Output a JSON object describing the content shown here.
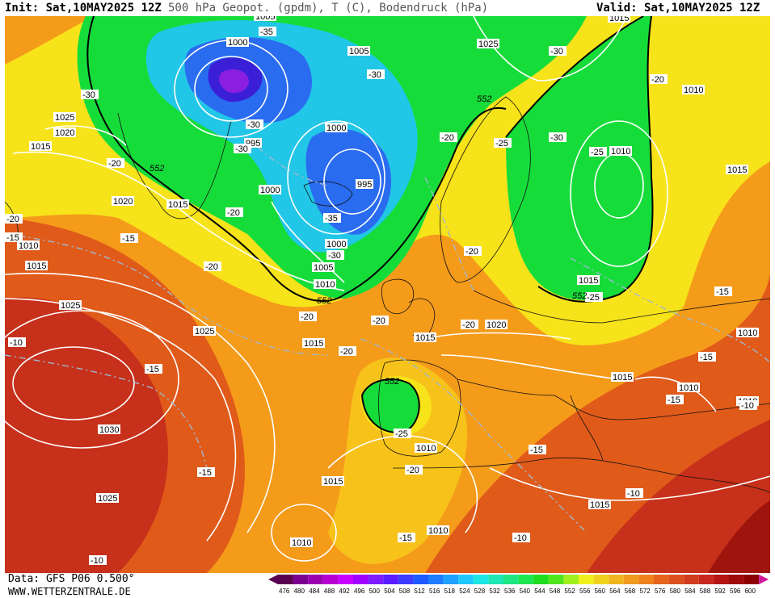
{
  "header": {
    "init": "Init: Sat,10MAY2025 12Z",
    "title": "500 hPa Geopot. (gpdm), T (C), Bodendruck (hPa)",
    "valid": "Valid: Sat,10MAY2025 12Z"
  },
  "footer": {
    "source": "Data: GFS P06 0.500°",
    "site": "WWW.WETTERZENTRALE.DE"
  },
  "colors": {
    "deep_blue": "#3a1fd6",
    "blue": "#2a6cf0",
    "cyan": "#22c6e6",
    "green": "#16dc3a",
    "yellow": "#f7e31a",
    "orange": "#f59b1a",
    "dark_orange": "#e05a1a",
    "red": "#c7301a",
    "contour": "#ffffff",
    "geopot_line": "#000000",
    "temp_line": "#a0b8d0"
  },
  "scale": {
    "values": [
      "476",
      "480",
      "484",
      "488",
      "492",
      "496",
      "500",
      "504",
      "508",
      "512",
      "516",
      "518",
      "524",
      "528",
      "532",
      "536",
      "540",
      "544",
      "548",
      "552",
      "556",
      "560",
      "564",
      "568",
      "572",
      "576",
      "580",
      "584",
      "588",
      "592",
      "596",
      "600"
    ],
    "colors": [
      "#5a0050",
      "#7a0090",
      "#9a00b0",
      "#b400d0",
      "#c800ff",
      "#a000ff",
      "#7c1cff",
      "#5a1cff",
      "#3c3cff",
      "#1e5aff",
      "#1e7cff",
      "#1ea0ff",
      "#1ec8ff",
      "#1ee6e6",
      "#1ee6b4",
      "#1ee682",
      "#1ee650",
      "#1edc1e",
      "#50e61e",
      "#a0f01e",
      "#f0f01e",
      "#f0d21e",
      "#f0b41e",
      "#f09b1e",
      "#f0821e",
      "#e6641e",
      "#dc501e",
      "#d23c1e",
      "#c8281e",
      "#b41414",
      "#a00a0a",
      "#8c0000"
    ]
  },
  "isobars": [
    {
      "id": "p1",
      "text": "1005"
    },
    {
      "id": "p2",
      "text": "1000"
    },
    {
      "id": "p3",
      "text": "1005"
    },
    {
      "id": "p4",
      "text": "1025"
    },
    {
      "id": "p5",
      "text": "1015"
    },
    {
      "id": "p6",
      "text": "1010"
    },
    {
      "id": "p7",
      "text": "1025"
    },
    {
      "id": "p8",
      "text": "1020"
    },
    {
      "id": "p9",
      "text": "1015"
    },
    {
      "id": "p10",
      "text": "995"
    },
    {
      "id": "p11",
      "text": "1000"
    },
    {
      "id": "p12",
      "text": "995"
    },
    {
      "id": "p13",
      "text": "1000"
    },
    {
      "id": "p14",
      "text": "1010"
    },
    {
      "id": "p15",
      "text": "1015"
    },
    {
      "id": "p16",
      "text": "1020"
    },
    {
      "id": "p17",
      "text": "1015"
    },
    {
      "id": "p18",
      "text": "1010"
    },
    {
      "id": "p19",
      "text": "1015"
    },
    {
      "id": "p20",
      "text": "1000"
    },
    {
      "id": "p21",
      "text": "1005"
    },
    {
      "id": "p22",
      "text": "1010"
    },
    {
      "id": "p23",
      "text": "1025"
    },
    {
      "id": "p24",
      "text": "1025"
    },
    {
      "id": "p25",
      "text": "1015"
    },
    {
      "id": "p26",
      "text": "1015"
    },
    {
      "id": "p27",
      "text": "1020"
    },
    {
      "id": "p28",
      "text": "1015"
    },
    {
      "id": "p29",
      "text": "1015"
    },
    {
      "id": "p30",
      "text": "1010"
    },
    {
      "id": "p31",
      "text": "1010"
    },
    {
      "id": "p32",
      "text": "1030"
    },
    {
      "id": "p33",
      "text": "1025"
    },
    {
      "id": "p34",
      "text": "1015"
    },
    {
      "id": "p35",
      "text": "1010"
    },
    {
      "id": "p36",
      "text": "1010"
    },
    {
      "id": "p37",
      "text": "1015"
    },
    {
      "id": "p38",
      "text": "1010"
    },
    {
      "id": "p39",
      "text": "1010"
    }
  ],
  "temps": [
    {
      "id": "t1",
      "text": "-35"
    },
    {
      "id": "t2",
      "text": "-30"
    },
    {
      "id": "t3",
      "text": "-30"
    },
    {
      "id": "t4",
      "text": "-30"
    },
    {
      "id": "t5",
      "text": "-30"
    },
    {
      "id": "t6",
      "text": "-20"
    },
    {
      "id": "t7",
      "text": "-25"
    },
    {
      "id": "t8",
      "text": "-30"
    },
    {
      "id": "t9",
      "text": "-25"
    },
    {
      "id": "t10",
      "text": "-20"
    },
    {
      "id": "t11",
      "text": "-30"
    },
    {
      "id": "t12",
      "text": "-20"
    },
    {
      "id": "t13",
      "text": "-20"
    },
    {
      "id": "t14",
      "text": "-35"
    },
    {
      "id": "t15",
      "text": "-15"
    },
    {
      "id": "t16",
      "text": "-15"
    },
    {
      "id": "t17",
      "text": "-20"
    },
    {
      "id": "t18",
      "text": "-30"
    },
    {
      "id": "t19",
      "text": "-20"
    },
    {
      "id": "t20",
      "text": "-20"
    },
    {
      "id": "t21",
      "text": "-20"
    },
    {
      "id": "t22",
      "text": "-20"
    },
    {
      "id": "t23",
      "text": "-25"
    },
    {
      "id": "t24",
      "text": "-15"
    },
    {
      "id": "t25",
      "text": "-10"
    },
    {
      "id": "t26",
      "text": "-15"
    },
    {
      "id": "t27",
      "text": "-20"
    },
    {
      "id": "t28",
      "text": "-15"
    },
    {
      "id": "t29",
      "text": "-20"
    },
    {
      "id": "t30",
      "text": "-15"
    },
    {
      "id": "t31",
      "text": "-10"
    },
    {
      "id": "t32",
      "text": "-15"
    },
    {
      "id": "t33",
      "text": "-15"
    },
    {
      "id": "t34",
      "text": "-10"
    },
    {
      "id": "t35",
      "text": "-10"
    },
    {
      "id": "t36",
      "text": "-25"
    },
    {
      "id": "t37",
      "text": "-10"
    },
    {
      "id": "t38",
      "text": "-15"
    },
    {
      "id": "t39",
      "text": "-20"
    }
  ],
  "geopot": [
    {
      "id": "g1",
      "text": "552"
    },
    {
      "id": "g2",
      "text": "552"
    },
    {
      "id": "g3",
      "text": "552"
    },
    {
      "id": "g4",
      "text": "552"
    },
    {
      "id": "g5",
      "text": "552"
    }
  ]
}
